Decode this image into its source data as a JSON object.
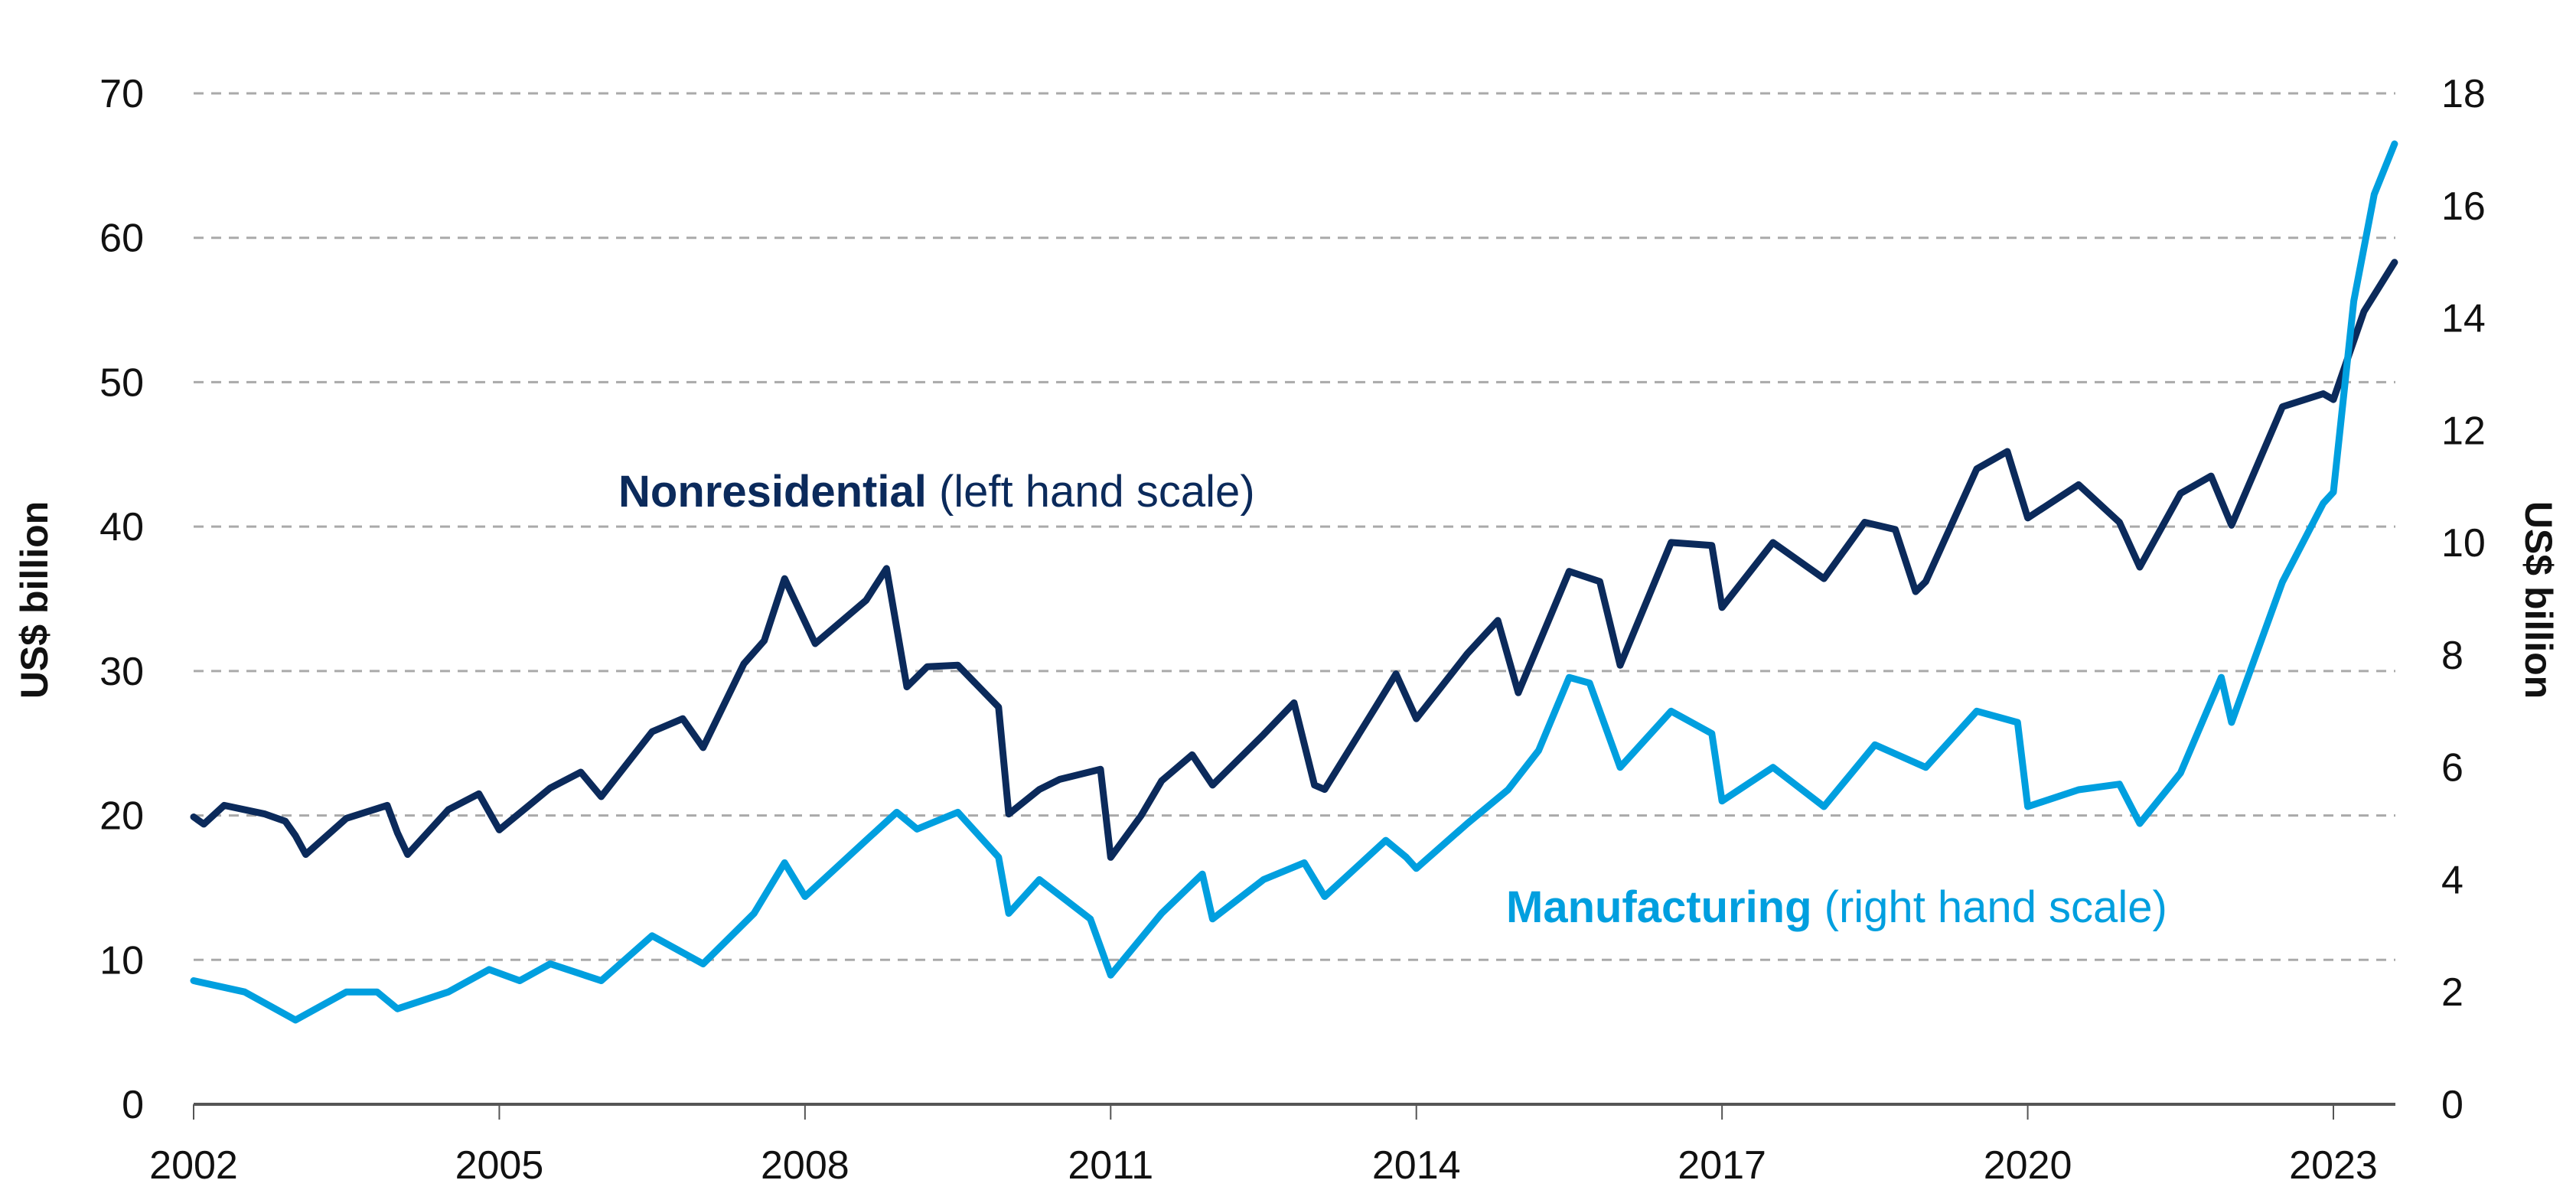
{
  "chart_data": {
    "type": "line",
    "title": "",
    "xlabel": "",
    "ylabel": "US$ billion",
    "ylabel_right": "US$ billion",
    "ylim": [
      0,
      70
    ],
    "ylim_right": [
      0,
      18
    ],
    "xlim": [
      2002.0,
      2023.6
    ],
    "grid": true,
    "legend_position": "inline annotations",
    "x_ticks": [
      "2002",
      "2005",
      "2008",
      "2011",
      "2014",
      "2017",
      "2020",
      "2023"
    ],
    "y_ticks_left": [
      "0",
      "10",
      "20",
      "30",
      "40",
      "50",
      "60",
      "70"
    ],
    "y_ticks_right": [
      "0",
      "2",
      "4",
      "6",
      "8",
      "10",
      "12",
      "14",
      "16",
      "18"
    ],
    "annotations": [
      {
        "bold": "Nonresidential",
        "text": " (left hand scale)",
        "series": "Nonresidential"
      },
      {
        "bold": "Manufacturing",
        "text": " (right hand scale)",
        "series": "Manufacturing"
      }
    ],
    "series": [
      {
        "name": "Nonresidential",
        "axis": "left",
        "color": "#0B2A5B",
        "x": [
          2002.0,
          2002.1,
          2002.3,
          2002.7,
          2002.9,
          2003.0,
          2003.1,
          2003.5,
          2003.9,
          2004.0,
          2004.1,
          2004.5,
          2004.8,
          2005.0,
          2005.5,
          2005.8,
          2006.0,
          2006.5,
          2006.8,
          2007.0,
          2007.4,
          2007.6,
          2007.8,
          2008.1,
          2008.6,
          2008.8,
          2009.0,
          2009.2,
          2009.5,
          2009.9,
          2010.0,
          2010.3,
          2010.5,
          2010.9,
          2011.0,
          2011.3,
          2011.5,
          2011.8,
          2012.0,
          2012.5,
          2012.8,
          2013.0,
          2013.1,
          2013.6,
          2013.8,
          2014.0,
          2014.5,
          2014.8,
          2015.0,
          2015.5,
          2015.8,
          2016.0,
          2016.5,
          2016.9,
          2017.0,
          2017.5,
          2018.0,
          2018.4,
          2018.7,
          2018.9,
          2019.0,
          2019.5,
          2019.8,
          2020.0,
          2020.5,
          2020.9,
          2021.1,
          2021.5,
          2021.8,
          2022.0,
          2022.5,
          2022.9,
          2023.0,
          2023.3,
          2023.6
        ],
        "values": [
          19.9,
          19.4,
          20.7,
          20.1,
          19.6,
          18.6,
          17.3,
          19.8,
          20.7,
          18.8,
          17.3,
          20.4,
          21.5,
          19.0,
          21.9,
          23.0,
          21.3,
          25.8,
          26.7,
          24.7,
          30.5,
          32.1,
          36.4,
          31.9,
          34.9,
          37.1,
          28.9,
          30.3,
          30.4,
          27.5,
          20.1,
          21.8,
          22.5,
          23.2,
          17.1,
          20.0,
          22.4,
          24.2,
          22.1,
          25.6,
          27.8,
          22.1,
          21.8,
          27.5,
          29.8,
          26.7,
          31.2,
          33.5,
          28.5,
          36.9,
          36.2,
          30.4,
          38.9,
          38.7,
          34.4,
          38.9,
          36.4,
          40.3,
          39.8,
          35.5,
          36.2,
          44.0,
          45.2,
          40.6,
          42.9,
          40.3,
          37.2,
          42.3,
          43.5,
          40.1,
          48.3,
          49.2,
          48.8,
          54.9,
          58.3
        ]
      },
      {
        "name": "Manufacturing",
        "axis": "right",
        "color": "#009FDF",
        "x": [
          2002.0,
          2002.5,
          2003.0,
          2003.5,
          2003.8,
          2004.0,
          2004.5,
          2004.9,
          2005.2,
          2005.5,
          2006.0,
          2006.5,
          2007.0,
          2007.5,
          2007.8,
          2008.0,
          2008.6,
          2008.9,
          2009.1,
          2009.5,
          2009.9,
          2010.0,
          2010.3,
          2010.8,
          2011.0,
          2011.5,
          2011.9,
          2012.0,
          2012.5,
          2012.9,
          2013.1,
          2013.7,
          2013.9,
          2014.0,
          2014.5,
          2014.9,
          2015.2,
          2015.5,
          2015.7,
          2016.0,
          2016.5,
          2016.9,
          2017.0,
          2017.5,
          2018.0,
          2018.5,
          2019.0,
          2019.5,
          2019.9,
          2020.0,
          2020.5,
          2020.9,
          2021.1,
          2021.5,
          2021.9,
          2022.0,
          2022.5,
          2022.9,
          2023.0,
          2023.2,
          2023.4,
          2023.6
        ],
        "values": [
          2.2,
          2.0,
          1.5,
          2.0,
          2.0,
          1.7,
          2.0,
          2.4,
          2.2,
          2.5,
          2.2,
          3.0,
          2.5,
          3.4,
          4.3,
          3.7,
          4.7,
          5.2,
          4.9,
          5.2,
          4.4,
          3.4,
          4.0,
          3.3,
          2.3,
          3.4,
          4.1,
          3.3,
          4.0,
          4.3,
          3.7,
          4.7,
          4.4,
          4.2,
          5.0,
          5.6,
          6.3,
          7.6,
          7.5,
          6.0,
          7.0,
          6.6,
          5.4,
          6.0,
          5.3,
          6.4,
          6.0,
          7.0,
          6.8,
          5.3,
          5.6,
          5.7,
          5.0,
          5.9,
          7.6,
          6.8,
          9.3,
          10.7,
          10.9,
          14.3,
          16.2,
          17.1
        ]
      }
    ]
  },
  "colors": {
    "nonresidential": "#0B2A5B",
    "manufacturing": "#009FDF",
    "gridline": "#AAAAAA",
    "axis": "#555555",
    "text": "#111111"
  }
}
